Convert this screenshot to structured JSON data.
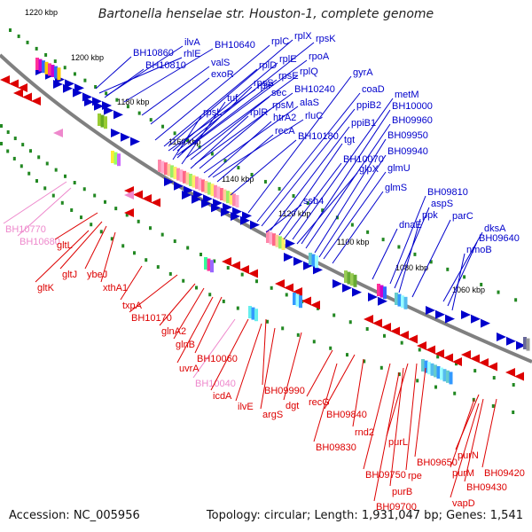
{
  "title": "Bartonella henselae str. Houston-1, complete genome",
  "footer": {
    "accession": "Accession: NC_005956",
    "topology": "Topology: circular; Length: 1,931,047 bp; Genes: 1,541"
  },
  "colors": {
    "forward": "#0000cc",
    "reverse": "#dd0000",
    "rna": "#ee88cc",
    "backbone": "#808080"
  },
  "ticks": [
    "1220 kbp",
    "1200 kbp",
    "1180 kbp",
    "1160 kbp",
    "1140 kbp",
    "1120 kbp",
    "1100 kbp",
    "1080 kbp",
    "1060 kbp"
  ],
  "labels_forward": [
    "BH10860",
    "ilvA",
    "BH10640",
    "rplC",
    "rplX",
    "rpsK",
    "rhlE",
    "BH10810",
    "valS",
    "rplD",
    "rplE",
    "rpoA",
    "exoR",
    "rplF",
    "rpsE",
    "rplQ",
    "rpsS",
    "sec",
    "BH10240",
    "tuf",
    "rpsL",
    "rplR",
    "rpsM",
    "alaS",
    "htrA2",
    "rluC",
    "recA",
    "BH10180",
    "gyrA",
    "coaD",
    "ppiB2",
    "metM",
    "ppiB1",
    "BH10000",
    "tgt",
    "BH09960",
    "BH10070",
    "BH09950",
    "glpX",
    "BH09940",
    "ssb4",
    "glmU",
    "glmS",
    "BH09810",
    "aspS",
    "ppk",
    "parC",
    "dnaE",
    "dksA",
    "BH09640",
    "nmoB"
  ],
  "labels_rna": [
    "BH10770",
    "BH10680",
    "BH10040"
  ],
  "labels_reverse": [
    "gltL",
    "gltJ",
    "ybeJ",
    "gltK",
    "xthA1",
    "txpA",
    "BH10170",
    "glnA2",
    "glnB",
    "BH10060",
    "uvrA",
    "icdA",
    "ilvE",
    "BH09990",
    "argS",
    "dgt",
    "recG",
    "BH09840",
    "BH09830",
    "rnd2",
    "purL",
    "BH09650",
    "BH09750",
    "rpe",
    "purB",
    "BH09700",
    "purN",
    "purM",
    "BH09420",
    "BH09430",
    "vapD"
  ]
}
